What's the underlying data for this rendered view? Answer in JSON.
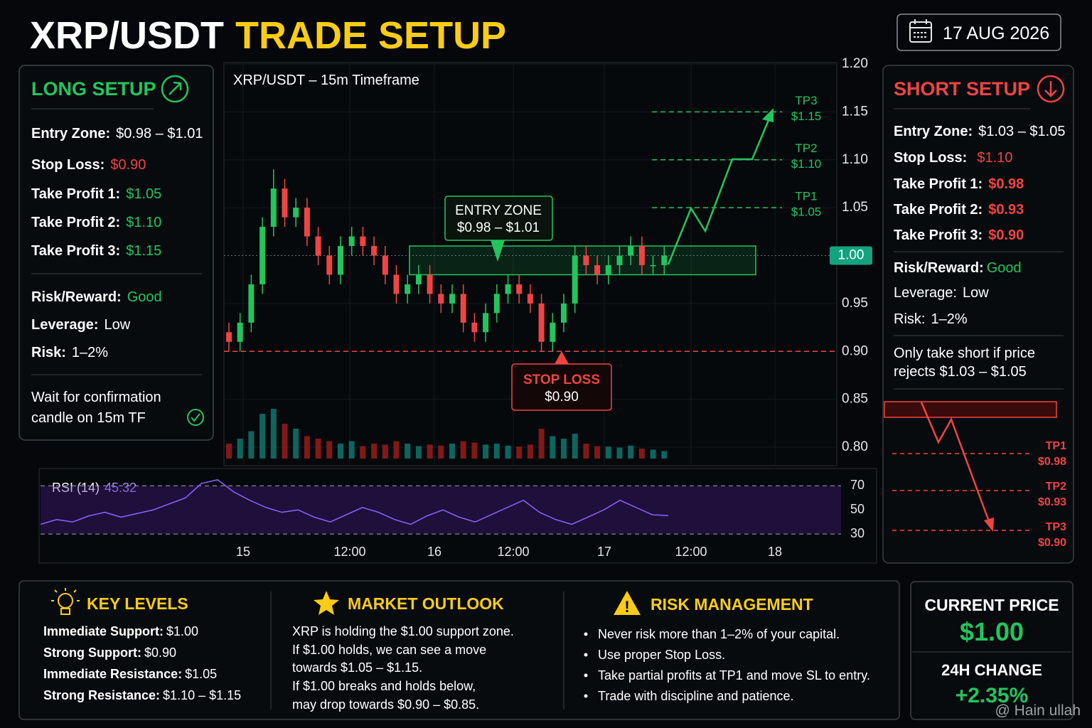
{
  "header": {
    "title_white": "XRP/USDT",
    "title_yellow": "TRADE SETUP",
    "date": "17 AUG 2026"
  },
  "long_setup": {
    "title": "LONG SETUP",
    "rows": [
      {
        "label": "Entry Zone:",
        "value": "$0.98 – $1.01"
      },
      {
        "label": "Stop Loss:",
        "value": "$0.90"
      },
      {
        "label": "Take Profit 1:",
        "value": "$1.05"
      },
      {
        "label": "Take Profit 2:",
        "value": "$1.10"
      },
      {
        "label": "Take Profit 3:",
        "value": "$1.15"
      }
    ],
    "risk_rows": [
      {
        "label": "Risk/Reward:",
        "value": "Good"
      },
      {
        "label": "Leverage:",
        "value": "Low"
      },
      {
        "label": "Risk:",
        "value": "1–2%"
      }
    ],
    "note": [
      "Wait for confirmation",
      "candle on 15m TF"
    ]
  },
  "short_setup": {
    "title": "SHORT SETUP",
    "rows": [
      {
        "label": "Entry Zone:",
        "value": "$1.03 – $1.05"
      },
      {
        "label": "Stop Loss:",
        "value": "$1.10"
      },
      {
        "label": "Take Profit 1:",
        "value": "$0.98"
      },
      {
        "label": "Take Profit 2:",
        "value": "$0.93"
      },
      {
        "label": "Take Profit 3:",
        "value": "$0.90"
      }
    ],
    "risk_rows": [
      {
        "label": "Risk/Reward:",
        "value": "Good"
      },
      {
        "label": "Leverage:",
        "value": "Low"
      },
      {
        "label": "Risk:",
        "value": "1–2%"
      }
    ],
    "note": [
      "Only take short if price",
      "rejects $1.03 – $1.05"
    ],
    "targets": [
      {
        "name": "TP1",
        "label": "$0.98"
      },
      {
        "name": "TP2",
        "label": "$0.93"
      },
      {
        "name": "TP3",
        "label": "$0.90"
      }
    ]
  },
  "price_chart": {
    "title": "XRP/USDT – 15m Timeframe",
    "ylim": [
      0.8,
      1.2
    ],
    "yticks": [
      {
        "value": 1.2,
        "label": "1.20"
      },
      {
        "value": 1.15,
        "label": "1.15"
      },
      {
        "value": 1.1,
        "label": "1.10"
      },
      {
        "value": 1.05,
        "label": "1.05"
      },
      {
        "value": 0.95,
        "label": "0.95"
      },
      {
        "value": 0.9,
        "label": "0.90"
      },
      {
        "value": 0.85,
        "label": "0.85"
      },
      {
        "value": 0.8,
        "label": "0.80"
      }
    ],
    "current": {
      "value": 1,
      "label": "1.00"
    },
    "open": [
      0.92,
      0.91,
      0.93,
      0.97,
      1.03,
      1.07,
      1.04,
      1.05,
      1.02,
      1.0,
      0.98,
      1.01,
      1.02,
      1.01,
      1.0,
      0.98,
      0.96,
      0.97,
      0.98,
      0.96,
      0.95,
      0.96,
      0.93,
      0.92,
      0.94,
      0.96,
      0.97,
      0.96,
      0.95,
      0.91,
      0.93,
      0.95,
      1.0,
      0.99,
      0.98,
      0.99,
      1.0,
      1.01,
      0.99,
      0.99
    ],
    "high": [
      0.93,
      0.94,
      0.98,
      1.04,
      1.09,
      1.08,
      1.06,
      1.06,
      1.03,
      1.01,
      1.02,
      1.03,
      1.03,
      1.02,
      1.01,
      0.99,
      0.98,
      0.99,
      0.99,
      0.97,
      0.97,
      0.97,
      0.94,
      0.95,
      0.97,
      0.98,
      0.98,
      0.97,
      0.96,
      0.94,
      0.96,
      1.01,
      1.01,
      1.0,
      1.0,
      1.01,
      1.02,
      1.02,
      1.0,
      1.01
    ],
    "low": [
      0.9,
      0.9,
      0.92,
      0.96,
      1.02,
      1.03,
      1.03,
      1.01,
      0.99,
      0.97,
      0.97,
      1.0,
      1.0,
      0.99,
      0.97,
      0.95,
      0.95,
      0.96,
      0.95,
      0.94,
      0.94,
      0.92,
      0.91,
      0.91,
      0.93,
      0.95,
      0.95,
      0.94,
      0.9,
      0.9,
      0.92,
      0.94,
      0.98,
      0.97,
      0.97,
      0.98,
      0.99,
      0.98,
      0.98,
      0.98
    ],
    "close": [
      0.91,
      0.93,
      0.97,
      1.03,
      1.07,
      1.04,
      1.05,
      1.02,
      1.0,
      0.98,
      1.01,
      1.02,
      1.01,
      1.0,
      0.98,
      0.96,
      0.97,
      0.98,
      0.96,
      0.95,
      0.96,
      0.93,
      0.92,
      0.94,
      0.96,
      0.97,
      0.96,
      0.95,
      0.91,
      0.93,
      0.95,
      1.0,
      0.99,
      0.98,
      0.99,
      1.0,
      1.01,
      0.99,
      0.99,
      1.0
    ],
    "volume": [
      30,
      40,
      55,
      90,
      100,
      70,
      60,
      45,
      40,
      35,
      30,
      35,
      25,
      30,
      28,
      35,
      30,
      25,
      28,
      26,
      30,
      35,
      32,
      28,
      30,
      26,
      24,
      28,
      60,
      45,
      40,
      50,
      30,
      25,
      24,
      22,
      26,
      20,
      18,
      15
    ],
    "entry_zone": {
      "title": "ENTRY ZONE",
      "label": "$0.98 – $1.01",
      "range": [
        0.98,
        1.01
      ]
    },
    "stop_loss": {
      "title": "STOP LOSS",
      "label": "$0.90",
      "value": 0.9
    },
    "targets": [
      {
        "name": "TP3",
        "label": "$1.15",
        "value": 1.15
      },
      {
        "name": "TP2",
        "label": "$1.10",
        "value": 1.1
      },
      {
        "name": "TP1",
        "label": "$1.05",
        "value": 1.05
      }
    ],
    "x_labels": [
      "15",
      "12:00",
      "16",
      "12:00",
      "17",
      "12:00",
      "18"
    ]
  },
  "rsi": {
    "label": "RSI (14)",
    "value": 45.32,
    "ylim": [
      20,
      85
    ],
    "yticks": [
      70,
      50,
      30
    ],
    "values": [
      38,
      42,
      40,
      45,
      48,
      44,
      47,
      50,
      55,
      60,
      72,
      75,
      65,
      58,
      52,
      48,
      50,
      44,
      40,
      46,
      52,
      48,
      42,
      38,
      45,
      50,
      44,
      40,
      46,
      52,
      58,
      48,
      42,
      38,
      44,
      50,
      58,
      52,
      46,
      45.32
    ]
  },
  "key_levels": {
    "title": "KEY LEVELS",
    "items": [
      {
        "label": "Immediate Support:",
        "value": "$1.00"
      },
      {
        "label": "Strong Support:",
        "value": "$0.90"
      },
      {
        "label": "Immediate Resistance:",
        "value": "$1.05"
      },
      {
        "label": "Strong Resistance:",
        "value": "$1.10 – $1.15"
      }
    ]
  },
  "market_outlook": {
    "title": "MARKET OUTLOOK",
    "lines": [
      "XRP is holding the $1.00 support zone.",
      "If $1.00 holds, we can see a move",
      "towards $1.05 – $1.15.",
      "If $1.00 breaks and holds below,",
      "may drop towards $0.90 – $0.85."
    ]
  },
  "risk_management": {
    "title": "RISK MANAGEMENT",
    "items": [
      "Never risk more than 1–2% of your capital.",
      "Use proper Stop Loss.",
      "Take partial profits at TP1 and move SL to entry.",
      "Trade with discipline and patience."
    ]
  },
  "current_price": {
    "title": "CURRENT PRICE",
    "value": "$1.00",
    "change_title": "24H CHANGE",
    "change": "+2.35%"
  },
  "watermark": "@ Hain ullah"
}
